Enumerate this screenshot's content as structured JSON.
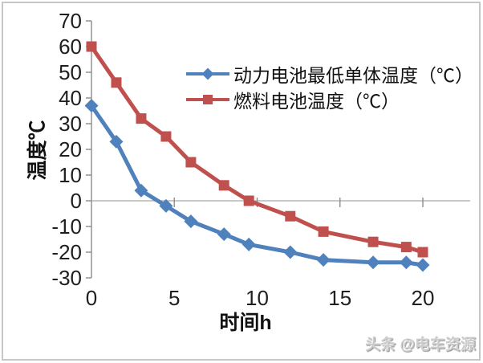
{
  "watermark": {
    "text": "头条 @电车资源"
  },
  "chart_data": {
    "type": "line",
    "title": "",
    "xlabel": "时间h",
    "ylabel": "温度℃",
    "x": [
      0,
      1.5,
      3,
      4.5,
      6,
      8,
      9.5,
      12,
      14,
      17,
      19,
      20
    ],
    "series": [
      {
        "name": "动力电池最低单体温度（℃）",
        "color": "#4F81BD",
        "marker": "diamond",
        "values": [
          37,
          23,
          4,
          -2,
          -8,
          -13,
          -17,
          -20,
          -23,
          -24,
          -24,
          -25
        ]
      },
      {
        "name": "燃料电池温度（℃）",
        "color": "#C0504D",
        "marker": "square",
        "values": [
          60,
          46,
          32,
          25,
          15,
          6,
          0,
          -6,
          -12,
          -16,
          -18,
          -20
        ]
      }
    ],
    "xticks": [
      0,
      5,
      10,
      15,
      20
    ],
    "yticks": [
      70,
      60,
      50,
      40,
      30,
      20,
      10,
      0,
      -10,
      -20,
      -30
    ],
    "xlim": [
      0,
      22
    ],
    "ylim": [
      -30,
      70
    ],
    "grid": "horizontal zero line only",
    "legend_position": "inside top-right",
    "colors": {
      "axis": "#8c8c8c",
      "zero_line": "#a6a6a6",
      "tick_text": "#1f1f1f"
    }
  }
}
